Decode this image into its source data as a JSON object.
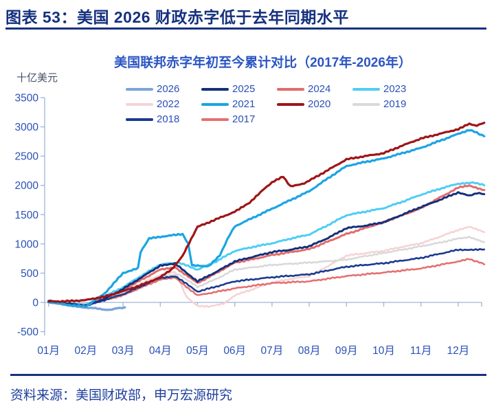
{
  "header": {
    "title": "图表 53：美国 2026 财政赤字低于去年同期水平"
  },
  "chart": {
    "title": "美国联邦赤字年初至今累计对比（2017年-2026年）",
    "unit_label": "十亿美元"
  },
  "footer": {
    "source": "资料来源：美国财政部，申万宏源研究"
  },
  "colors": {
    "header_text": "#15307f",
    "title_text": "#2b55c4",
    "axis_line": "#9db2da",
    "axis_text": "#2a50b8",
    "source_text": "#1d3f9c"
  },
  "chart_data": {
    "type": "line",
    "title": "美国联邦赤字年初至今累计对比（2017年-2026年）",
    "xlabel": "",
    "ylabel": "十亿美元",
    "ylim": [
      -500,
      3500
    ],
    "ytick_step": 500,
    "yticks": [
      -500,
      0,
      500,
      1000,
      1500,
      2000,
      2500,
      3000,
      3500
    ],
    "grid": false,
    "legend_position": "top",
    "x_axis_months": [
      "01月",
      "02月",
      "03月",
      "04月",
      "05月",
      "06月",
      "07月",
      "08月",
      "09月",
      "10月",
      "11月",
      "12月"
    ],
    "draw_order": [
      "2022",
      "2019",
      "2017",
      "2018",
      "2026",
      "2023",
      "2024",
      "2025",
      "2021",
      "2020"
    ],
    "series": [
      {
        "name": "2026",
        "color": "#7aa6d8",
        "width": 3.4,
        "end_value": -85,
        "points": [
          [
            1,
            0
          ],
          [
            1.3,
            -20
          ],
          [
            1.6,
            -60
          ],
          [
            2,
            -95
          ],
          [
            2.2,
            -90
          ],
          [
            2.5,
            -130
          ],
          [
            2.7,
            -120
          ],
          [
            2.9,
            -95
          ],
          [
            3.05,
            -85
          ]
        ]
      },
      {
        "name": "2025",
        "color": "#14307a",
        "width": 3.0,
        "end_value": 1850,
        "points": [
          [
            1,
            25
          ],
          [
            1.5,
            -20
          ],
          [
            2,
            -55
          ],
          [
            2.5,
            60
          ],
          [
            3,
            230
          ],
          [
            3.5,
            430
          ],
          [
            4,
            630
          ],
          [
            4.4,
            660
          ],
          [
            5,
            360
          ],
          [
            5.5,
            520
          ],
          [
            6,
            700
          ],
          [
            6.5,
            780
          ],
          [
            7,
            860
          ],
          [
            7.5,
            900
          ],
          [
            8,
            960
          ],
          [
            8.5,
            1100
          ],
          [
            9,
            1270
          ],
          [
            9.5,
            1310
          ],
          [
            10,
            1370
          ],
          [
            10.5,
            1500
          ],
          [
            11,
            1630
          ],
          [
            11.5,
            1750
          ],
          [
            12,
            1880
          ],
          [
            12.3,
            1820
          ],
          [
            12.5,
            1870
          ],
          [
            12.7,
            1850
          ]
        ]
      },
      {
        "name": "2024",
        "color": "#e26b6b",
        "width": 3.0,
        "end_value": 1920,
        "points": [
          [
            1,
            20
          ],
          [
            1.5,
            -25
          ],
          [
            2,
            -50
          ],
          [
            2.5,
            70
          ],
          [
            3,
            210
          ],
          [
            3.5,
            390
          ],
          [
            4,
            560
          ],
          [
            4.4,
            600
          ],
          [
            5,
            330
          ],
          [
            5.5,
            500
          ],
          [
            6,
            680
          ],
          [
            6.5,
            740
          ],
          [
            7,
            810
          ],
          [
            7.5,
            860
          ],
          [
            8,
            910
          ],
          [
            8.5,
            1040
          ],
          [
            9,
            1170
          ],
          [
            9.5,
            1270
          ],
          [
            10,
            1370
          ],
          [
            10.5,
            1490
          ],
          [
            11,
            1610
          ],
          [
            11.5,
            1790
          ],
          [
            12,
            1960
          ],
          [
            12.3,
            2000
          ],
          [
            12.7,
            1920
          ]
        ]
      },
      {
        "name": "2023",
        "color": "#4fcdf5",
        "width": 3.0,
        "end_value": 2000,
        "points": [
          [
            1,
            25
          ],
          [
            1.5,
            -15
          ],
          [
            2,
            -40
          ],
          [
            2.5,
            100
          ],
          [
            3,
            260
          ],
          [
            3.5,
            460
          ],
          [
            4,
            650
          ],
          [
            4.5,
            680
          ],
          [
            5,
            560
          ],
          [
            5.5,
            700
          ],
          [
            6,
            880
          ],
          [
            6.5,
            950
          ],
          [
            7,
            1010
          ],
          [
            7.5,
            1090
          ],
          [
            8,
            1160
          ],
          [
            8.5,
            1320
          ],
          [
            9,
            1490
          ],
          [
            9.5,
            1550
          ],
          [
            10,
            1610
          ],
          [
            10.5,
            1720
          ],
          [
            11,
            1840
          ],
          [
            11.5,
            1940
          ],
          [
            12,
            2030
          ],
          [
            12.4,
            2050
          ],
          [
            12.7,
            2000
          ]
        ]
      },
      {
        "name": "2022",
        "color": "#f6d3d5",
        "width": 2.6,
        "end_value": 1200,
        "points": [
          [
            1,
            30
          ],
          [
            1.5,
            0
          ],
          [
            2,
            -30
          ],
          [
            2.5,
            70
          ],
          [
            3,
            180
          ],
          [
            3.5,
            330
          ],
          [
            4,
            470
          ],
          [
            4.4,
            520
          ],
          [
            4.7,
            100
          ],
          [
            5,
            -60
          ],
          [
            5.3,
            -75
          ],
          [
            5.7,
            -20
          ],
          [
            6,
            120
          ],
          [
            6.5,
            230
          ],
          [
            7,
            340
          ],
          [
            7.5,
            400
          ],
          [
            8,
            450
          ],
          [
            8.5,
            620
          ],
          [
            9,
            800
          ],
          [
            9.5,
            840
          ],
          [
            10,
            880
          ],
          [
            10.5,
            950
          ],
          [
            11,
            1010
          ],
          [
            11.5,
            1120
          ],
          [
            12,
            1240
          ],
          [
            12.3,
            1290
          ],
          [
            12.7,
            1200
          ]
        ]
      },
      {
        "name": "2021",
        "color": "#1ba4e3",
        "width": 3.2,
        "end_value": 2840,
        "points": [
          [
            1,
            10
          ],
          [
            1.5,
            -40
          ],
          [
            2,
            -70
          ],
          [
            2.5,
            150
          ],
          [
            3,
            500
          ],
          [
            3.4,
            590
          ],
          [
            3.47,
            860
          ],
          [
            3.7,
            1090
          ],
          [
            4,
            1120
          ],
          [
            4.3,
            1150
          ],
          [
            4.6,
            1160
          ],
          [
            4.75,
            1000
          ],
          [
            4.85,
            640
          ],
          [
            5,
            630
          ],
          [
            5.3,
            620
          ],
          [
            5.6,
            800
          ],
          [
            5.8,
            1080
          ],
          [
            6,
            1300
          ],
          [
            6.5,
            1450
          ],
          [
            7,
            1600
          ],
          [
            7.5,
            1750
          ],
          [
            8,
            1900
          ],
          [
            8.5,
            2120
          ],
          [
            9,
            2330
          ],
          [
            9.5,
            2400
          ],
          [
            10,
            2460
          ],
          [
            10.5,
            2550
          ],
          [
            11,
            2640
          ],
          [
            11.5,
            2760
          ],
          [
            12,
            2880
          ],
          [
            12.3,
            2950
          ],
          [
            12.5,
            2900
          ],
          [
            12.7,
            2840
          ]
        ]
      },
      {
        "name": "2020",
        "color": "#9e1517",
        "width": 3.2,
        "end_value": 3070,
        "points": [
          [
            1,
            15
          ],
          [
            1.5,
            20
          ],
          [
            2,
            40
          ],
          [
            2.5,
            100
          ],
          [
            3,
            190
          ],
          [
            3.5,
            300
          ],
          [
            4,
            430
          ],
          [
            4.3,
            560
          ],
          [
            4.6,
            800
          ],
          [
            5,
            1290
          ],
          [
            5.5,
            1420
          ],
          [
            6,
            1550
          ],
          [
            6.4,
            1700
          ],
          [
            6.8,
            1950
          ],
          [
            7,
            2050
          ],
          [
            7.3,
            2150
          ],
          [
            7.5,
            1980
          ],
          [
            7.8,
            2020
          ],
          [
            8,
            2080
          ],
          [
            8.5,
            2260
          ],
          [
            9,
            2445
          ],
          [
            9.5,
            2500
          ],
          [
            10,
            2550
          ],
          [
            10.5,
            2680
          ],
          [
            11,
            2800
          ],
          [
            11.5,
            2880
          ],
          [
            12,
            2960
          ],
          [
            12.3,
            3050
          ],
          [
            12.5,
            3020
          ],
          [
            12.7,
            3070
          ]
        ]
      },
      {
        "name": "2019",
        "color": "#d9d9d9",
        "width": 2.6,
        "end_value": 1030,
        "points": [
          [
            1,
            10
          ],
          [
            1.5,
            -25
          ],
          [
            2,
            -40
          ],
          [
            2.5,
            50
          ],
          [
            3,
            150
          ],
          [
            3.5,
            290
          ],
          [
            4,
            440
          ],
          [
            4.5,
            480
          ],
          [
            5,
            265
          ],
          [
            5.5,
            400
          ],
          [
            6,
            560
          ],
          [
            6.5,
            600
          ],
          [
            7,
            640
          ],
          [
            7.5,
            660
          ],
          [
            8,
            680
          ],
          [
            8.5,
            705
          ],
          [
            9,
            730
          ],
          [
            9.5,
            790
          ],
          [
            10,
            845
          ],
          [
            10.5,
            900
          ],
          [
            11,
            960
          ],
          [
            11.5,
            1020
          ],
          [
            12,
            1090
          ],
          [
            12.3,
            1120
          ],
          [
            12.7,
            1030
          ]
        ]
      },
      {
        "name": "2018",
        "color": "#1a3a8e",
        "width": 2.6,
        "end_value": 905,
        "points": [
          [
            1,
            20
          ],
          [
            1.5,
            -30
          ],
          [
            2,
            -60
          ],
          [
            2.5,
            40
          ],
          [
            3,
            140
          ],
          [
            3.5,
            280
          ],
          [
            4,
            420
          ],
          [
            4.4,
            450
          ],
          [
            5,
            185
          ],
          [
            5.5,
            270
          ],
          [
            6,
            360
          ],
          [
            6.5,
            395
          ],
          [
            7,
            430
          ],
          [
            7.5,
            455
          ],
          [
            8,
            480
          ],
          [
            8.5,
            545
          ],
          [
            9,
            610
          ],
          [
            9.5,
            640
          ],
          [
            10,
            670
          ],
          [
            10.5,
            715
          ],
          [
            11,
            760
          ],
          [
            11.5,
            830
          ],
          [
            12,
            900
          ],
          [
            12.7,
            905
          ]
        ]
      },
      {
        "name": "2017",
        "color": "#e57070",
        "width": 2.6,
        "end_value": 650,
        "points": [
          [
            1,
            15
          ],
          [
            1.5,
            -20
          ],
          [
            2,
            -45
          ],
          [
            2.5,
            40
          ],
          [
            3,
            120
          ],
          [
            3.5,
            260
          ],
          [
            4,
            390
          ],
          [
            4.4,
            420
          ],
          [
            5,
            120
          ],
          [
            5.5,
            180
          ],
          [
            6,
            240
          ],
          [
            6.5,
            285
          ],
          [
            7,
            330
          ],
          [
            7.5,
            345
          ],
          [
            8,
            360
          ],
          [
            8.5,
            405
          ],
          [
            9,
            450
          ],
          [
            9.5,
            480
          ],
          [
            10,
            510
          ],
          [
            10.5,
            545
          ],
          [
            11,
            580
          ],
          [
            11.5,
            640
          ],
          [
            12,
            700
          ],
          [
            12.3,
            740
          ],
          [
            12.5,
            700
          ],
          [
            12.7,
            650
          ]
        ]
      }
    ]
  }
}
